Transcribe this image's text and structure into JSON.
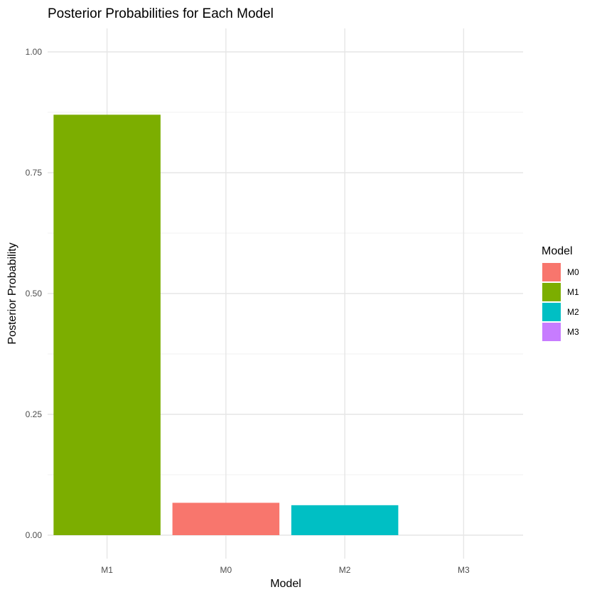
{
  "chart_data": {
    "type": "bar",
    "title": "Posterior Probabilities for Each Model",
    "xlabel": "Model",
    "ylabel": "Posterior Probability",
    "categories": [
      "M1",
      "M0",
      "M2",
      "M3"
    ],
    "values": [
      0.87,
      0.067,
      0.062,
      0.0
    ],
    "colors": {
      "M0": "#F8766D",
      "M1": "#7CAE00",
      "M2": "#00BFC4",
      "M3": "#C77CFF"
    },
    "ylim": [
      0,
      1.05
    ],
    "yticks": [
      0.0,
      0.25,
      0.5,
      0.75,
      1.0
    ],
    "ytick_labels": [
      "0.00",
      "0.25",
      "0.50",
      "0.75",
      "1.00"
    ],
    "grid": true,
    "legend": {
      "title": "Model",
      "position": "right",
      "entries": [
        "M0",
        "M1",
        "M2",
        "M3"
      ]
    }
  }
}
